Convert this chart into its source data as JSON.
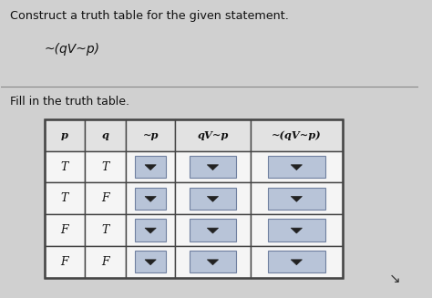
{
  "title_line1": "Construct a truth table for the given statement.",
  "title_line2": "~(qV~p)",
  "subtitle": "Fill in the truth table.",
  "rows": [
    [
      "T",
      "T"
    ],
    [
      "T",
      "F"
    ],
    [
      "F",
      "T"
    ],
    [
      "F",
      "F"
    ]
  ],
  "header_labels": [
    "p",
    "q",
    "~p",
    "qV~p",
    "~(qV~p)"
  ],
  "background_color": "#d0d0d0",
  "table_cell_bg": "#f0f0f0",
  "dropdown_bg": "#b8c4d8",
  "dropdown_border": "#7080a0",
  "cell_text_color": "#111111",
  "header_text_color": "#111111",
  "border_color": "#444444",
  "title_color": "#111111",
  "figsize": [
    4.74,
    3.27
  ],
  "dpi": 100
}
